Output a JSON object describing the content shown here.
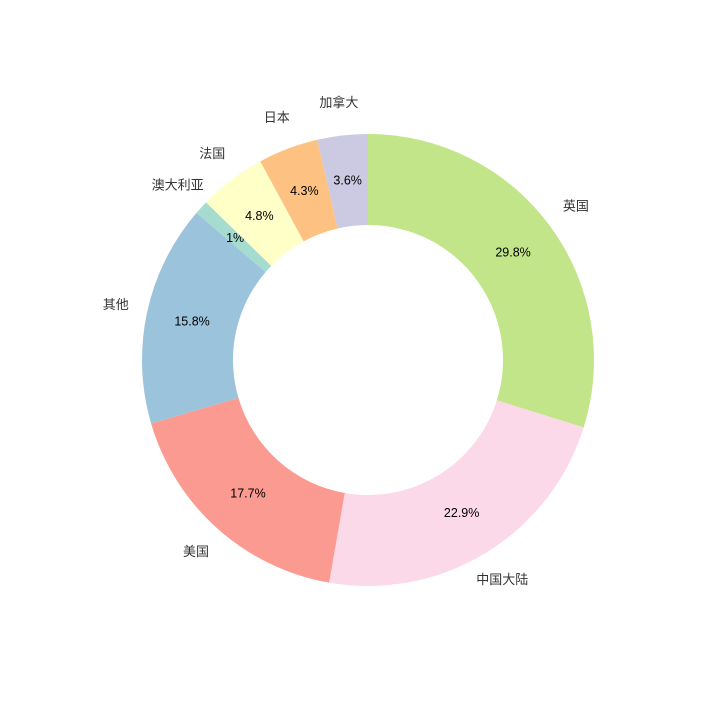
{
  "chart_data": {
    "type": "donut",
    "categories": [
      "英国",
      "中国大陆",
      "美国",
      "其他",
      "澳大利亚",
      "法国",
      "日本",
      "加拿大"
    ],
    "values": [
      29.8,
      22.9,
      17.7,
      15.8,
      1,
      4.8,
      4.3,
      3.6
    ],
    "value_labels": [
      "29.8%",
      "22.9%",
      "17.7%",
      "15.8%",
      "1%",
      "4.8%",
      "4.3%",
      "3.6%"
    ],
    "colors": [
      "#c3e58a",
      "#fcd9e8",
      "#fb9a90",
      "#9cc3dc",
      "#a6dcd0",
      "#ffffc8",
      "#fdc282",
      "#cccae2"
    ]
  }
}
